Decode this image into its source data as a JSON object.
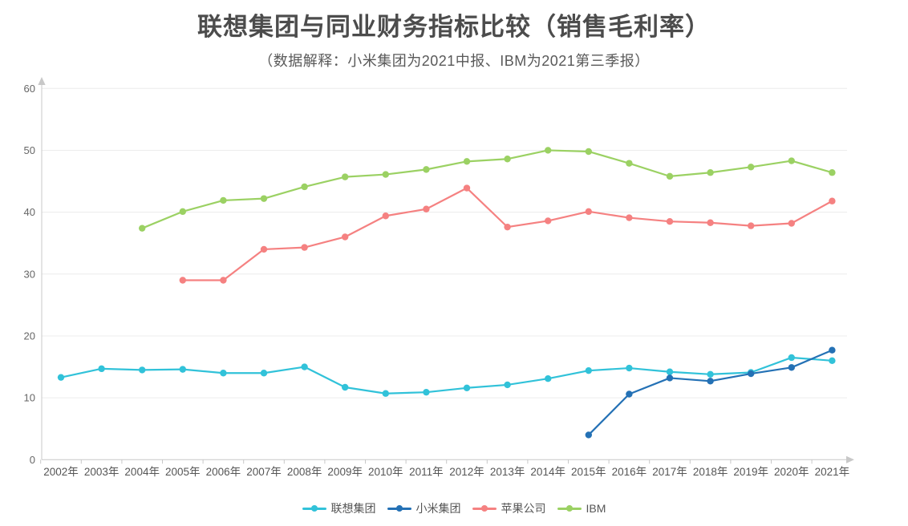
{
  "header": {
    "title": "联想集团与同业财务指标比较（销售毛利率）",
    "subtitle": "（数据解释：小米集团为2021中报、IBM为2021第三季报）"
  },
  "chart_data": {
    "type": "line",
    "title": "联想集团与同业财务指标比较（销售毛利率）",
    "subtitle": "（数据解释：小米集团为2021中报、IBM为2021第三季报）",
    "xlabel": "",
    "ylabel": "",
    "ylim": [
      0,
      60
    ],
    "yticks": [
      0,
      10,
      20,
      30,
      40,
      50,
      60
    ],
    "grid": true,
    "legend_position": "bottom",
    "categories": [
      "2002年",
      "2003年",
      "2004年",
      "2005年",
      "2006年",
      "2007年",
      "2008年",
      "2009年",
      "2010年",
      "2011年",
      "2012年",
      "2013年",
      "2014年",
      "2015年",
      "2016年",
      "2017年",
      "2018年",
      "2019年",
      "2020年",
      "2021年"
    ],
    "series": [
      {
        "name": "联想集团",
        "color": "#31c2d9",
        "values": [
          13.3,
          14.7,
          14.5,
          14.6,
          14.0,
          14.0,
          15.0,
          11.7,
          10.7,
          10.9,
          11.6,
          12.1,
          13.1,
          14.4,
          14.8,
          14.2,
          13.8,
          14.1,
          16.5,
          16.0
        ]
      },
      {
        "name": "小米集团",
        "color": "#2471b5",
        "values": [
          null,
          null,
          null,
          null,
          null,
          null,
          null,
          null,
          null,
          null,
          null,
          null,
          null,
          4.0,
          10.6,
          13.2,
          12.7,
          13.9,
          14.9,
          17.7
        ]
      },
      {
        "name": "苹果公司",
        "color": "#f58181",
        "values": [
          null,
          null,
          null,
          29.0,
          29.0,
          34.0,
          34.3,
          36.0,
          39.4,
          40.5,
          43.9,
          37.6,
          38.6,
          40.1,
          39.1,
          38.5,
          38.3,
          37.8,
          38.2,
          41.8
        ]
      },
      {
        "name": "IBM",
        "color": "#9bd163",
        "values": [
          null,
          null,
          37.4,
          40.1,
          41.9,
          42.2,
          44.1,
          45.7,
          46.1,
          46.9,
          48.2,
          48.6,
          50.0,
          49.8,
          47.9,
          45.8,
          46.4,
          47.3,
          48.3,
          46.4
        ]
      }
    ]
  }
}
